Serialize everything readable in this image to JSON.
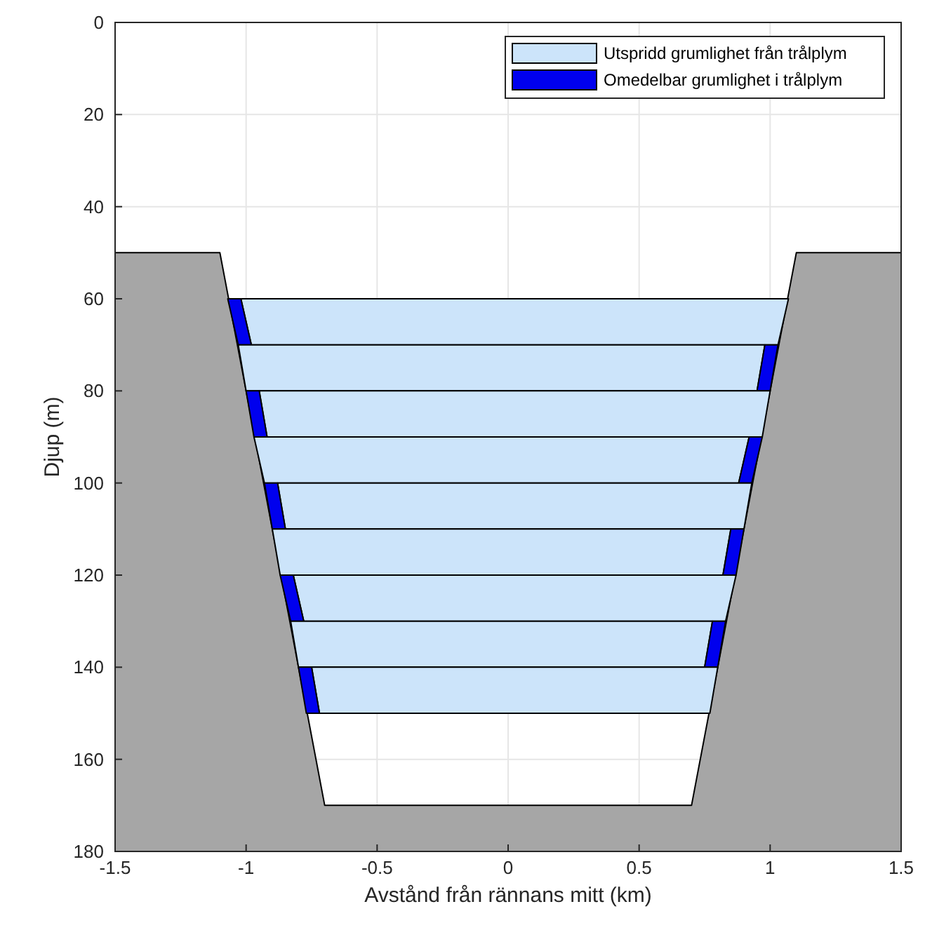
{
  "chart_data": {
    "type": "area",
    "xlabel": "Avstånd från rännans mitt (km)",
    "ylabel": "Djup (m)",
    "xlim": [
      -1.5,
      1.5
    ],
    "xticks": [
      -1.5,
      -1,
      -0.5,
      0,
      0.5,
      1,
      1.5
    ],
    "ylim": [
      180,
      0
    ],
    "yticks": [
      0,
      20,
      40,
      60,
      80,
      100,
      120,
      140,
      160,
      180
    ],
    "grid": true,
    "legend": "top right",
    "series": [
      {
        "color": "#a6a6a6",
        "x": [
          -1.5,
          -1.1,
          -0.7,
          0.7,
          1.1,
          1.5,
          1.5,
          -1.5
        ],
        "values": [
          50,
          50,
          170,
          170,
          50,
          50,
          180,
          180
        ]
      },
      {
        "name": "Utspridd grumlighet från trålplym",
        "color": "#cce4fa",
        "x": [
          -1.02,
          1.07,
          1.03,
          -0.98
        ],
        "values": [
          60,
          60,
          70,
          70
        ]
      },
      {
        "name": "Omedelbar grumlighet i trålplym",
        "color": "#0000ee",
        "x": [
          -1.07,
          -1.02,
          -0.98,
          -1.03
        ],
        "values": [
          60,
          60,
          70,
          70
        ]
      },
      {
        "color": "#cce4fa",
        "x": [
          -1.03,
          0.98,
          0.95,
          -1.0
        ],
        "values": [
          70,
          70,
          80,
          80
        ]
      },
      {
        "color": "#0000ee",
        "x": [
          0.98,
          1.03,
          1.0,
          0.95
        ],
        "values": [
          70,
          70,
          80,
          80
        ]
      },
      {
        "color": "#cce4fa",
        "x": [
          -0.95,
          1.0,
          0.97,
          -0.92
        ],
        "values": [
          80,
          80,
          90,
          90
        ]
      },
      {
        "color": "#0000ee",
        "x": [
          -1.0,
          -0.95,
          -0.92,
          -0.97
        ],
        "values": [
          80,
          80,
          90,
          90
        ]
      },
      {
        "color": "#cce4fa",
        "x": [
          -0.97,
          0.92,
          0.88,
          -0.93
        ],
        "values": [
          90,
          90,
          100,
          100
        ]
      },
      {
        "color": "#0000ee",
        "x": [
          0.92,
          0.97,
          0.93,
          0.88
        ],
        "values": [
          90,
          90,
          100,
          100
        ]
      },
      {
        "color": "#cce4fa",
        "x": [
          -0.88,
          0.93,
          0.9,
          -0.85
        ],
        "values": [
          100,
          100,
          110,
          110
        ]
      },
      {
        "color": "#0000ee",
        "x": [
          -0.93,
          -0.88,
          -0.85,
          -0.9
        ],
        "values": [
          100,
          100,
          110,
          110
        ]
      },
      {
        "color": "#cce4fa",
        "x": [
          -0.9,
          0.85,
          0.82,
          -0.87
        ],
        "values": [
          110,
          110,
          120,
          120
        ]
      },
      {
        "color": "#0000ee",
        "x": [
          0.85,
          0.9,
          0.87,
          0.82
        ],
        "values": [
          110,
          110,
          120,
          120
        ]
      },
      {
        "color": "#cce4fa",
        "x": [
          -0.82,
          0.87,
          0.83,
          -0.78
        ],
        "values": [
          120,
          120,
          130,
          130
        ]
      },
      {
        "color": "#0000ee",
        "x": [
          -0.87,
          -0.82,
          -0.78,
          -0.83
        ],
        "values": [
          120,
          120,
          130,
          130
        ]
      },
      {
        "color": "#cce4fa",
        "x": [
          -0.83,
          0.78,
          0.75,
          -0.8
        ],
        "values": [
          130,
          130,
          140,
          140
        ]
      },
      {
        "color": "#0000ee",
        "x": [
          0.78,
          0.83,
          0.8,
          0.75
        ],
        "values": [
          130,
          130,
          140,
          140
        ]
      },
      {
        "color": "#cce4fa",
        "x": [
          -0.75,
          0.8,
          0.77,
          -0.72
        ],
        "values": [
          140,
          140,
          150,
          150
        ]
      },
      {
        "color": "#0000ee",
        "x": [
          -0.8,
          -0.75,
          -0.72,
          -0.77
        ],
        "values": [
          140,
          140,
          150,
          150
        ]
      }
    ]
  }
}
